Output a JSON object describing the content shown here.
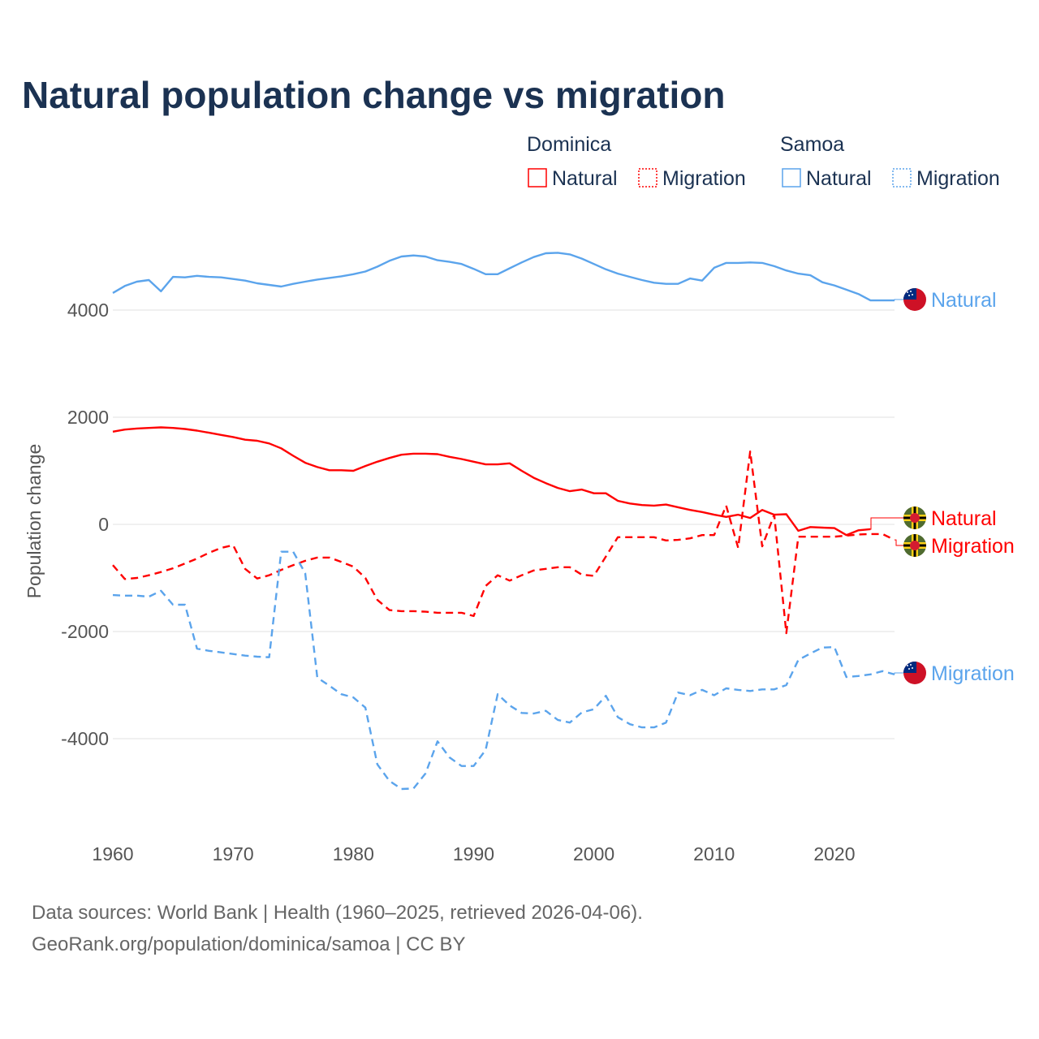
{
  "chart_data": {
    "type": "line",
    "title": "Natural population change vs migration",
    "xlabel": "",
    "ylabel": "Population change",
    "xlim": [
      1960,
      2025
    ],
    "ylim": [
      -5200,
      5300
    ],
    "x_ticks": [
      1960,
      1970,
      1980,
      1990,
      2000,
      2010,
      2020
    ],
    "x_tick_labels": [
      "1960",
      "1970",
      "1980",
      "1990",
      "2000",
      "2010",
      "2020"
    ],
    "y_ticks": [
      4000,
      2000,
      0,
      -2000,
      -4000
    ],
    "y_tick_labels": [
      "4000",
      "2000",
      "0",
      "-2000",
      "-4000"
    ],
    "grid": true,
    "legend": {
      "placement": "top-right",
      "groups": [
        {
          "country": "Dominica",
          "items": [
            "Natural",
            "Migration"
          ]
        },
        {
          "country": "Samoa",
          "items": [
            "Natural",
            "Migration"
          ]
        }
      ]
    },
    "x": [
      1960,
      1961,
      1962,
      1963,
      1964,
      1965,
      1966,
      1967,
      1968,
      1969,
      1970,
      1971,
      1972,
      1973,
      1974,
      1975,
      1976,
      1977,
      1978,
      1979,
      1980,
      1981,
      1982,
      1983,
      1984,
      1985,
      1986,
      1987,
      1988,
      1989,
      1990,
      1991,
      1992,
      1993,
      1994,
      1995,
      1996,
      1997,
      1998,
      1999,
      2000,
      2001,
      2002,
      2003,
      2004,
      2005,
      2006,
      2007,
      2008,
      2009,
      2010,
      2011,
      2012,
      2013,
      2014,
      2015,
      2016,
      2017,
      2018,
      2019,
      2020,
      2021,
      2022,
      2023,
      2024,
      2025
    ],
    "series": [
      {
        "name": "Samoa Natural",
        "country": "Samoa",
        "kind": "Natural",
        "color": "#5ba4ec",
        "dash": false,
        "end_label": "Natural",
        "values": [
          4320,
          4450,
          4530,
          4560,
          4350,
          4620,
          4610,
          4640,
          4620,
          4610,
          4580,
          4550,
          4500,
          4470,
          4440,
          4490,
          4530,
          4570,
          4600,
          4630,
          4670,
          4720,
          4810,
          4920,
          5000,
          5020,
          5000,
          4930,
          4900,
          4860,
          4770,
          4670,
          4670,
          4780,
          4890,
          4990,
          5060,
          5070,
          5040,
          4960,
          4860,
          4760,
          4680,
          4620,
          4560,
          4510,
          4490,
          4490,
          4590,
          4550,
          4790,
          4880,
          4880,
          4890,
          4880,
          4820,
          4740,
          4680,
          4650,
          4520,
          4460,
          4380,
          4300,
          4180,
          4180,
          4180
        ]
      },
      {
        "name": "Dominica Natural",
        "country": "Dominica",
        "kind": "Natural",
        "color": "#ff0000",
        "dash": false,
        "end_label": "Natural",
        "values": [
          1730,
          1770,
          1790,
          1800,
          1810,
          1800,
          1780,
          1750,
          1710,
          1670,
          1630,
          1580,
          1560,
          1510,
          1420,
          1280,
          1150,
          1070,
          1010,
          1010,
          1000,
          1090,
          1170,
          1240,
          1300,
          1320,
          1320,
          1310,
          1260,
          1220,
          1170,
          1120,
          1120,
          1140,
          1000,
          870,
          770,
          680,
          620,
          650,
          580,
          580,
          440,
          390,
          360,
          350,
          370,
          320,
          270,
          230,
          180,
          140,
          180,
          120,
          270,
          180,
          190,
          -120,
          -50,
          -60,
          -70,
          -200,
          -110,
          -90,
          null,
          null
        ]
      },
      {
        "name": "Dominica Migration",
        "country": "Dominica",
        "kind": "Migration",
        "color": "#ff0000",
        "dash": true,
        "end_label": "Migration",
        "values": [
          -760,
          -1020,
          -1000,
          -950,
          -890,
          -820,
          -730,
          -640,
          -530,
          -440,
          -390,
          -830,
          -1010,
          -950,
          -850,
          -760,
          -680,
          -620,
          -620,
          -700,
          -790,
          -1000,
          -1410,
          -1600,
          -1620,
          -1620,
          -1630,
          -1650,
          -1650,
          -1650,
          -1710,
          -1150,
          -950,
          -1050,
          -950,
          -860,
          -830,
          -800,
          -800,
          -940,
          -960,
          -600,
          -240,
          -240,
          -240,
          -240,
          -300,
          -290,
          -260,
          -200,
          -200,
          350,
          -440,
          1360,
          -410,
          180,
          -2030,
          -230,
          -230,
          -230,
          -230,
          -210,
          -190,
          -180,
          -180,
          -290
        ]
      },
      {
        "name": "Samoa Migration",
        "country": "Samoa",
        "kind": "Migration",
        "color": "#5ba4ec",
        "dash": true,
        "end_label": "Migration",
        "values": [
          -1320,
          -1330,
          -1330,
          -1350,
          -1240,
          -1500,
          -1500,
          -2320,
          -2360,
          -2390,
          -2420,
          -2450,
          -2470,
          -2480,
          -510,
          -510,
          -910,
          -2860,
          -3010,
          -3170,
          -3230,
          -3420,
          -4480,
          -4790,
          -4940,
          -4930,
          -4650,
          -4050,
          -4350,
          -4510,
          -4510,
          -4210,
          -3170,
          -3380,
          -3520,
          -3530,
          -3480,
          -3650,
          -3700,
          -3510,
          -3450,
          -3200,
          -3600,
          -3730,
          -3790,
          -3790,
          -3700,
          -3140,
          -3190,
          -3090,
          -3190,
          -3060,
          -3090,
          -3110,
          -3080,
          -3080,
          -3000,
          -2530,
          -2410,
          -2300,
          -2290,
          -2850,
          -2830,
          -2800,
          -2740,
          -2800
        ]
      }
    ]
  },
  "footer": {
    "source_line": "Data sources: World Bank | Health (1960–2025, retrieved 2026-04-06).",
    "url_line": "GeoRank.org/population/dominica/samoa | CC BY"
  },
  "colors": {
    "dominica": "#ff0000",
    "samoa": "#5ba4ec",
    "title": "#1b3252",
    "grid": "#e6e6e6"
  }
}
